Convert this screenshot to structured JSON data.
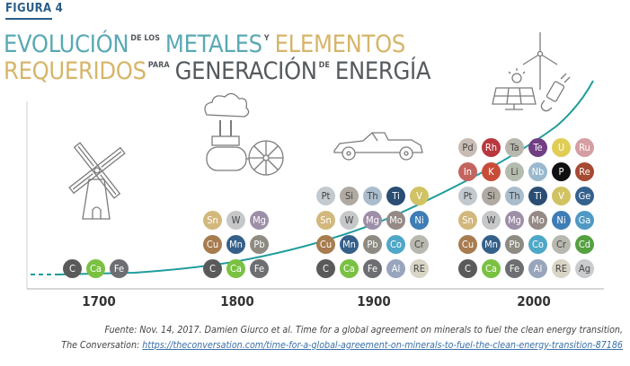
{
  "figure": {
    "label": "FIGURA 4",
    "title": {
      "line1": [
        {
          "text": "EVOLUCIÓN",
          "small": false,
          "color": "#5aa9b4"
        },
        {
          "text": "DE LOS",
          "small": true,
          "color": "#555a5e"
        },
        {
          "text": "METALES",
          "small": false,
          "color": "#5aa9b4"
        },
        {
          "text": "Y",
          "small": true,
          "color": "#555a5e"
        },
        {
          "text": "ELEMENTOS",
          "small": false,
          "color": "#d6b56a"
        }
      ],
      "line2": [
        {
          "text": "REQUERIDOS",
          "small": false,
          "color": "#d6b56a"
        },
        {
          "text": "PARA",
          "small": true,
          "color": "#555a5e"
        },
        {
          "text": "GENERACIÓN",
          "small": false,
          "color": "#555a5e"
        },
        {
          "text": "DE",
          "small": true,
          "color": "#555a5e"
        },
        {
          "text": "ENERGÍA",
          "small": false,
          "color": "#555a5e"
        }
      ]
    }
  },
  "chart_data": {
    "type": "timeline-bubbles",
    "x_labels": [
      "1700",
      "1800",
      "1900",
      "2000"
    ],
    "groups": [
      {
        "year": "1700",
        "technology": "windmill-icon",
        "rows": [
          [
            "C",
            "Ca",
            "Fe"
          ]
        ]
      },
      {
        "year": "1800",
        "technology": "steam-engine-icon",
        "rows": [
          [
            "Sn",
            "W",
            "Mg"
          ],
          [
            "Cu",
            "Mn",
            "Pb"
          ],
          [
            "C",
            "Ca",
            "Fe"
          ]
        ]
      },
      {
        "year": "1900",
        "technology": "car-icon",
        "rows": [
          [
            "Pt",
            "Si",
            "Th",
            "Ti",
            "V"
          ],
          [
            "Sn",
            "W",
            "Mg",
            "Mo",
            "Ni"
          ],
          [
            "Cu",
            "Mn",
            "Pb",
            "Co",
            "Cr"
          ],
          [
            "C",
            "Ca",
            "Fe",
            "Al",
            "RE"
          ]
        ]
      },
      {
        "year": "2000",
        "technology": "renewables-icon",
        "rows": [
          [
            "Pd",
            "Rh",
            "Ta",
            "Te",
            "U",
            "Ru"
          ],
          [
            "In",
            "K",
            "Li",
            "Nb",
            "P",
            "Re"
          ],
          [
            "Pt",
            "Si",
            "Th",
            "Ti",
            "V",
            "Ge"
          ],
          [
            "Sn",
            "W",
            "Mg",
            "Mo",
            "Ni",
            "Ga"
          ],
          [
            "Cu",
            "Mn",
            "Pb",
            "Co",
            "Cr",
            "Cd"
          ],
          [
            "C",
            "Ca",
            "Fe",
            "Al",
            "RE",
            "Ag"
          ]
        ]
      }
    ],
    "trend": "exponential growth in number of elements required"
  },
  "element_colors": {
    "C": "#5a5a5a",
    "Ca": "#7ac142",
    "Fe": "#6d6e71",
    "Cu": "#a77c4f",
    "Mn": "#35608a",
    "Pb": "#8e8b83",
    "Sn": "#d2b87d",
    "W": "#c6c7c9",
    "Mg": "#9e8fa8",
    "Al": "#98a5bd",
    "Co": "#4fa7c7",
    "Cr": "#b8b8b0",
    "RE": "#d9d5c6",
    "Mo": "#958a86",
    "Ni": "#3e7db6",
    "Pt": "#c2c9cf",
    "Si": "#b0aaa2",
    "Th": "#aabdcd",
    "Ti": "#294d73",
    "V": "#d1c263",
    "Pd": "#c8bcb4",
    "Rh": "#b8383e",
    "Ta": "#b9b8ad",
    "Te": "#713f82",
    "U": "#e1cd56",
    "Ru": "#d59ea3",
    "In": "#c4645f",
    "K": "#c84d38",
    "Li": "#b4bcae",
    "Nb": "#9ab9cf",
    "P": "#101010",
    "Re": "#a54a33",
    "Ge": "#35618d",
    "Ga": "#4f99c4",
    "Cd": "#55a041",
    "Ag": "#c9cbcd"
  },
  "light_elements": [
    "W",
    "Cr",
    "RE",
    "Pt",
    "Si",
    "Th",
    "Pd",
    "Ta",
    "Li",
    "Ag"
  ],
  "caption": {
    "line1": "Fuente: Nov. 14, 2017. Damien Giurco et al. Time for a global agreement on minerals to fuel the clean energy transition,",
    "line2_prefix": "The Conversation: ",
    "line2_link": "https://theconversation.com/time-for-a-global-agreement-on-minerals-to-fuel-the-clean-energy-transition-87186"
  }
}
